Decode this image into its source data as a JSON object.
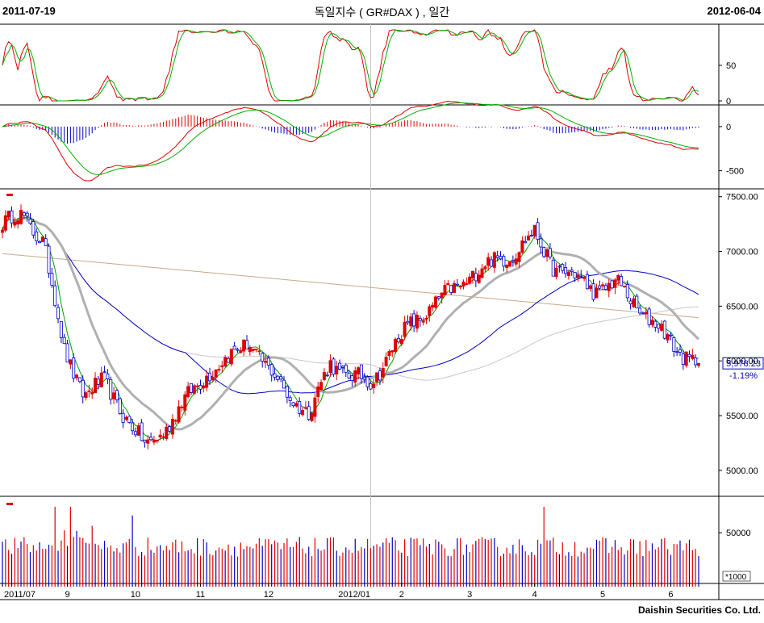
{
  "header": {
    "start_date": "2011-07-19",
    "title": "독일지수 ( GR#DAX ) , 일간",
    "end_date": "2012-06-04"
  },
  "footer": {
    "company": "Daishin Securities Co. Ltd."
  },
  "colors": {
    "up": "#e00000",
    "down": "#0000c8",
    "sto_k": "#e00000",
    "sto_d": "#00b000",
    "ma5": "#00a000",
    "ma20": "#b0b0b0",
    "ma60": "#0000c8",
    "ma120": "#c8c8c8",
    "ma240": "#c8a888",
    "crosshair": "#c0c0c0",
    "price_box": "#0000c8"
  },
  "chart_data": [
    {
      "type": "line",
      "name": "stochastic",
      "y_ticks": [
        "50",
        "0"
      ],
      "ylim": [
        0,
        100
      ],
      "grid": false
    },
    {
      "type": "line",
      "name": "macd",
      "y_ticks": [
        "0",
        "-500"
      ],
      "ylim": [
        -650,
        200
      ],
      "grid": false
    },
    {
      "type": "candlestick",
      "name": "price",
      "y_ticks": [
        "7500.00",
        "7000.00",
        "6500.00",
        "6000.00",
        "5500.00",
        "5000.00"
      ],
      "ylim": [
        4800,
        7520
      ],
      "last_price": "5,978.23",
      "change_pct": "-1.19%",
      "points": [
        [
          "2011-07",
          7250
        ],
        [
          "2011-07",
          7330
        ],
        [
          "2011-08",
          7100
        ],
        [
          "2011-08",
          6100
        ],
        [
          "2011-08",
          5700
        ],
        [
          "2011-08",
          5800
        ],
        [
          "2011-09",
          5500
        ],
        [
          "2011-09",
          5200
        ],
        [
          "2011-09",
          5400
        ],
        [
          "2011-10",
          5650
        ],
        [
          "2011-10",
          5900
        ],
        [
          "2011-10",
          6000
        ],
        [
          "2011-11",
          6200
        ],
        [
          "2011-11",
          5900
        ],
        [
          "2011-11",
          5700
        ],
        [
          "2011-11",
          5500
        ],
        [
          "2011-12",
          6000
        ],
        [
          "2011-12",
          5850
        ],
        [
          "2011-12",
          5800
        ],
        [
          "2012-01",
          6100
        ],
        [
          "2012-01",
          6350
        ],
        [
          "2012-01",
          6500
        ],
        [
          "2012-02",
          6650
        ],
        [
          "2012-02",
          6800
        ],
        [
          "2012-03",
          6900
        ],
        [
          "2012-03",
          7000
        ],
        [
          "2012-03",
          7150
        ],
        [
          "2012-04",
          6850
        ],
        [
          "2012-04",
          6750
        ],
        [
          "2012-04",
          6650
        ],
        [
          "2012-05",
          6700
        ],
        [
          "2012-05",
          6500
        ],
        [
          "2012-05",
          6300
        ],
        [
          "2012-06",
          6100
        ],
        [
          "2012-06",
          5978
        ]
      ]
    },
    {
      "type": "bar",
      "name": "volume",
      "y_ticks": [
        "50000"
      ],
      "unit_label": "*1000",
      "ylim": [
        0,
        80000
      ],
      "grid": false
    }
  ],
  "x_axis": {
    "ticks": [
      "2011/07",
      "9",
      "10",
      "11",
      "12",
      "2012/01",
      "2",
      "3",
      "4",
      "5",
      "6"
    ]
  }
}
